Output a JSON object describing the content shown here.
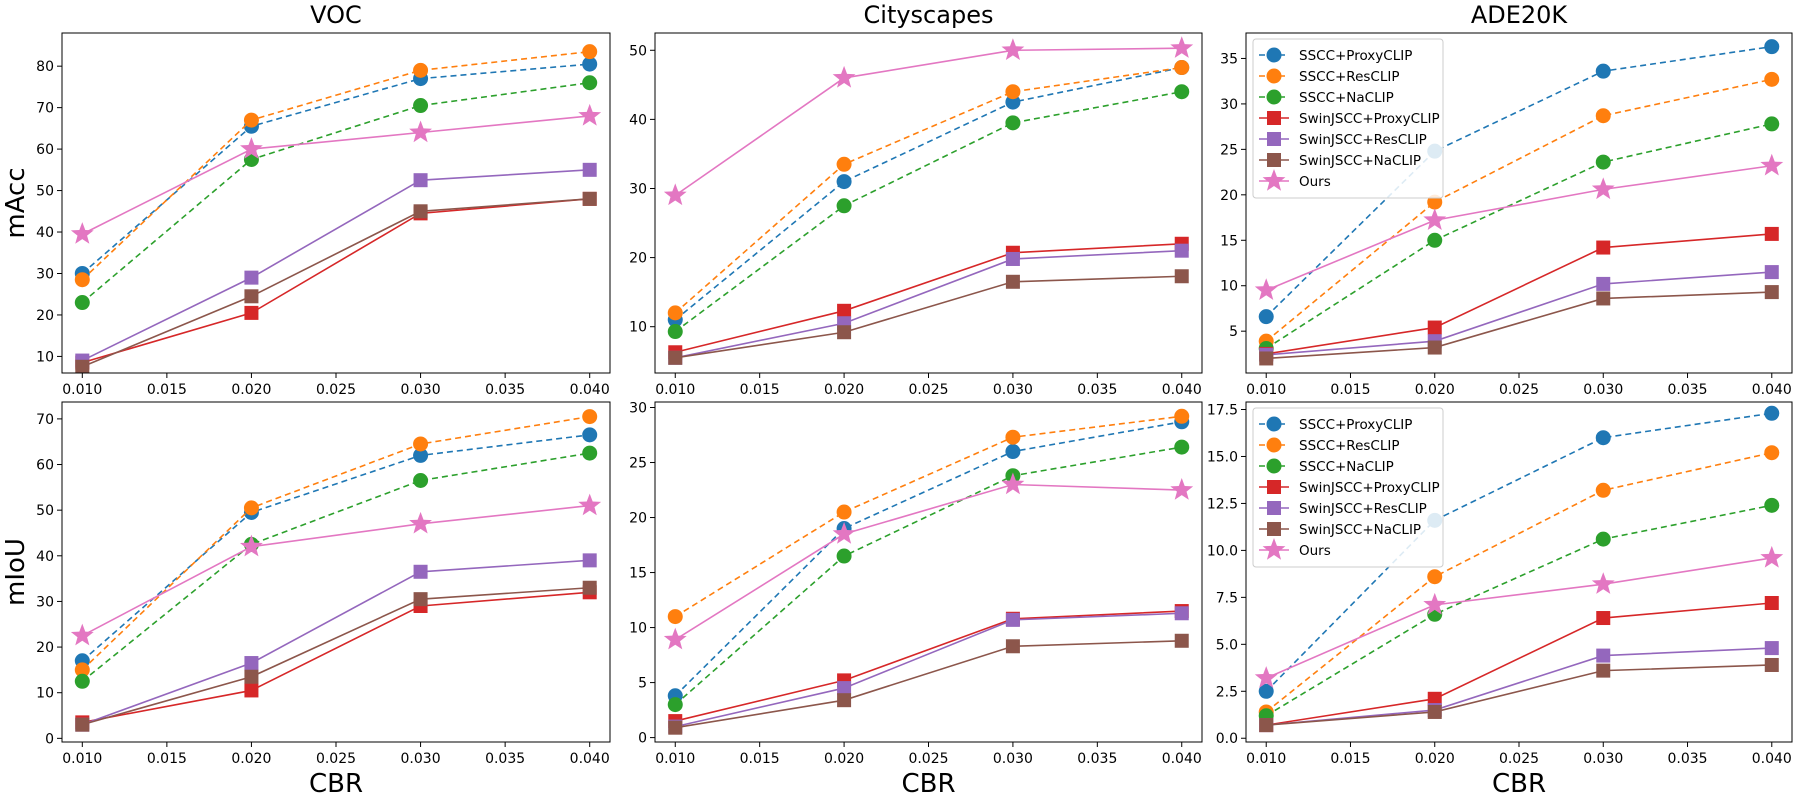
{
  "chart_data": {
    "type": "line",
    "x": [
      0.01,
      0.02,
      0.03,
      0.04
    ],
    "xlabel": "CBR",
    "xticks": [
      "0.010",
      "0.015",
      "0.020",
      "0.025",
      "0.030",
      "0.035",
      "0.040"
    ],
    "series_styles": [
      {
        "name": "SSCC+ProxyCLIP",
        "color": "#1f77b4",
        "marker": "circle",
        "dashed": true
      },
      {
        "name": "SSCC+ResCLIP",
        "color": "#ff7f0e",
        "marker": "circle",
        "dashed": true
      },
      {
        "name": "SSCC+NaCLIP",
        "color": "#2ca02c",
        "marker": "circle",
        "dashed": true
      },
      {
        "name": "SwinJSCC+ProxyCLIP",
        "color": "#d62728",
        "marker": "square",
        "dashed": false
      },
      {
        "name": "SwinJSCC+ResCLIP",
        "color": "#9467bd",
        "marker": "square",
        "dashed": false
      },
      {
        "name": "SwinJSCC+NaCLIP",
        "color": "#8c564b",
        "marker": "square",
        "dashed": false
      },
      {
        "name": "Ours",
        "color": "#e377c2",
        "marker": "star",
        "dashed": false
      }
    ],
    "panels": [
      {
        "column_title": "VOC",
        "ylabel": "mAcc",
        "ylim": [
          6,
          88
        ],
        "yticks": [
          "10",
          "20",
          "30",
          "40",
          "50",
          "60",
          "70",
          "80"
        ],
        "legend": "",
        "series": [
          {
            "name": "SSCC+ProxyCLIP",
            "values": [
              30,
              65.5,
              77,
              80.5
            ]
          },
          {
            "name": "SSCC+ResCLIP",
            "values": [
              28.5,
              67,
              79,
              83.5
            ]
          },
          {
            "name": "SSCC+NaCLIP",
            "values": [
              23,
              57.5,
              70.5,
              76
            ]
          },
          {
            "name": "SwinJSCC+ProxyCLIP",
            "values": [
              8.5,
              20.5,
              44.5,
              48
            ]
          },
          {
            "name": "SwinJSCC+ResCLIP",
            "values": [
              9,
              29,
              52.5,
              55
            ]
          },
          {
            "name": "SwinJSCC+NaCLIP",
            "values": [
              7.5,
              24.5,
              45,
              48
            ]
          },
          {
            "name": "Ours",
            "values": [
              39.5,
              60,
              64,
              68
            ]
          }
        ]
      },
      {
        "column_title": "Cityscapes",
        "ylabel": "",
        "ylim": [
          3.3,
          52.5
        ],
        "yticks": [
          "10",
          "20",
          "30",
          "40",
          "50"
        ],
        "legend": "",
        "series": [
          {
            "name": "SSCC+ProxyCLIP",
            "values": [
              11,
              31,
              42.5,
              47.5
            ]
          },
          {
            "name": "SSCC+ResCLIP",
            "values": [
              12,
              33.5,
              44,
              47.5
            ]
          },
          {
            "name": "SSCC+NaCLIP",
            "values": [
              9.3,
              27.5,
              39.5,
              44
            ]
          },
          {
            "name": "SwinJSCC+ProxyCLIP",
            "values": [
              6.3,
              12.3,
              20.7,
              22
            ]
          },
          {
            "name": "SwinJSCC+ResCLIP",
            "values": [
              5.5,
              10.5,
              19.8,
              21
            ]
          },
          {
            "name": "SwinJSCC+NaCLIP",
            "values": [
              5.5,
              9.2,
              16.5,
              17.3
            ]
          },
          {
            "name": "Ours",
            "values": [
              29,
              46,
              50,
              50.3
            ]
          }
        ]
      },
      {
        "column_title": "ADE20K",
        "ylabel": "",
        "ylim": [
          0.4,
          37.8
        ],
        "yticks": [
          "5",
          "10",
          "15",
          "20",
          "25",
          "30",
          "35"
        ],
        "legend": "upper left",
        "series": [
          {
            "name": "SSCC+ProxyCLIP",
            "values": [
              6.6,
              24.8,
              33.6,
              36.3
            ]
          },
          {
            "name": "SSCC+ResCLIP",
            "values": [
              3.9,
              19.2,
              28.7,
              32.7
            ]
          },
          {
            "name": "SSCC+NaCLIP",
            "values": [
              3.1,
              15,
              23.6,
              27.8
            ]
          },
          {
            "name": "SwinJSCC+ProxyCLIP",
            "values": [
              2.5,
              5.4,
              14.2,
              15.7
            ]
          },
          {
            "name": "SwinJSCC+ResCLIP",
            "values": [
              2.4,
              3.9,
              10.2,
              11.5
            ]
          },
          {
            "name": "SwinJSCC+NaCLIP",
            "values": [
              2,
              3.2,
              8.6,
              9.3
            ]
          },
          {
            "name": "Ours",
            "values": [
              9.5,
              17.2,
              20.6,
              23.2
            ]
          }
        ]
      },
      {
        "column_title": "",
        "ylabel": "mIoU",
        "ylim": [
          -0.8,
          73.7
        ],
        "yticks": [
          "0",
          "10",
          "20",
          "30",
          "40",
          "50",
          "60",
          "70"
        ],
        "legend": "",
        "series": [
          {
            "name": "SSCC+ProxyCLIP",
            "values": [
              17,
              49.5,
              62,
              66.5
            ]
          },
          {
            "name": "SSCC+ResCLIP",
            "values": [
              15,
              50.5,
              64.5,
              70.5
            ]
          },
          {
            "name": "SSCC+NaCLIP",
            "values": [
              12.5,
              42.5,
              56.5,
              62.5
            ]
          },
          {
            "name": "SwinJSCC+ProxyCLIP",
            "values": [
              3.5,
              10.5,
              29,
              32
            ]
          },
          {
            "name": "SwinJSCC+ResCLIP",
            "values": [
              3,
              16.5,
              36.5,
              39
            ]
          },
          {
            "name": "SwinJSCC+NaCLIP",
            "values": [
              3,
              13.5,
              30.5,
              33
            ]
          },
          {
            "name": "Ours",
            "values": [
              22.5,
              42,
              47,
              51
            ]
          }
        ]
      },
      {
        "column_title": "",
        "ylabel": "",
        "ylim": [
          -0.4,
          30.5
        ],
        "yticks": [
          "0",
          "5",
          "10",
          "15",
          "20",
          "25",
          "30"
        ],
        "legend": "",
        "series": [
          {
            "name": "SSCC+ProxyCLIP",
            "values": [
              3.8,
              19,
              26,
              28.7
            ]
          },
          {
            "name": "SSCC+ResCLIP",
            "values": [
              11,
              20.5,
              27.3,
              29.2
            ]
          },
          {
            "name": "SSCC+NaCLIP",
            "values": [
              3,
              16.5,
              23.8,
              26.4
            ]
          },
          {
            "name": "SwinJSCC+ProxyCLIP",
            "values": [
              1.5,
              5.2,
              10.8,
              11.5
            ]
          },
          {
            "name": "SwinJSCC+ResCLIP",
            "values": [
              1,
              4.5,
              10.7,
              11.3
            ]
          },
          {
            "name": "SwinJSCC+NaCLIP",
            "values": [
              0.9,
              3.4,
              8.3,
              8.8
            ]
          },
          {
            "name": "Ours",
            "values": [
              8.9,
              18.5,
              23,
              22.5
            ]
          }
        ]
      },
      {
        "column_title": "",
        "ylabel": "",
        "ylim": [
          -0.2,
          17.9
        ],
        "yticks": [
          "0.0",
          "2.5",
          "5.0",
          "7.5",
          "10.0",
          "12.5",
          "15.0",
          "17.5"
        ],
        "legend": "upper left",
        "series": [
          {
            "name": "SSCC+ProxyCLIP",
            "values": [
              2.5,
              11.6,
              16,
              17.3
            ]
          },
          {
            "name": "SSCC+ResCLIP",
            "values": [
              1.4,
              8.6,
              13.2,
              15.2
            ]
          },
          {
            "name": "SSCC+NaCLIP",
            "values": [
              1.2,
              6.6,
              10.6,
              12.4
            ]
          },
          {
            "name": "SwinJSCC+ProxyCLIP",
            "values": [
              0.7,
              2.1,
              6.4,
              7.2
            ]
          },
          {
            "name": "SwinJSCC+ResCLIP",
            "values": [
              0.7,
              1.5,
              4.4,
              4.8
            ]
          },
          {
            "name": "SwinJSCC+NaCLIP",
            "values": [
              0.7,
              1.4,
              3.6,
              3.9
            ]
          },
          {
            "name": "Ours",
            "values": [
              3.2,
              7.1,
              8.2,
              9.6
            ]
          }
        ]
      }
    ]
  }
}
